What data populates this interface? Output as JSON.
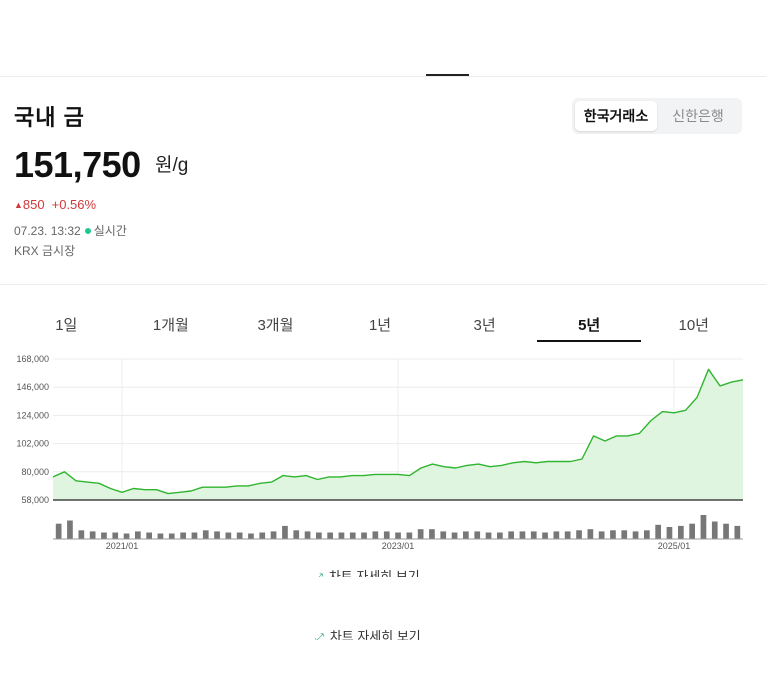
{
  "header": {
    "title": "국내 금",
    "sources": [
      {
        "label": "한국거래소",
        "active": true
      },
      {
        "label": "신한은행",
        "active": false
      }
    ]
  },
  "quote": {
    "price": "151,750",
    "unit": "원/g",
    "change_amount": "850",
    "change_percent": "+0.56%",
    "timestamp": "07.23. 13:32",
    "live_label": "실시간",
    "market": "KRX 금시장"
  },
  "periods": [
    {
      "label": "1일",
      "active": false
    },
    {
      "label": "1개월",
      "active": false
    },
    {
      "label": "3개월",
      "active": false
    },
    {
      "label": "1년",
      "active": false
    },
    {
      "label": "3년",
      "active": false
    },
    {
      "label": "5년",
      "active": true
    },
    {
      "label": "10년",
      "active": false
    }
  ],
  "colors": {
    "line": "#2fb52f",
    "area": "#dff5df",
    "up": "#d0393b",
    "live": "#1fc98d",
    "link_icon": "#1fa673"
  },
  "chart_data": {
    "type": "area",
    "x_start": "2020/07",
    "x_end": "2025/07",
    "x_ticks": [
      "2021/01",
      "2023/01",
      "2025/01"
    ],
    "y_ticks": [
      58000,
      80000,
      102000,
      124000,
      146000,
      168000
    ],
    "y_tick_labels": [
      "58,000",
      "80,000",
      "102,000",
      "124,000",
      "146,000",
      "168,000"
    ],
    "ylim": [
      58000,
      168000
    ],
    "grid": true,
    "series": [
      {
        "values": [
          76000,
          80000,
          73000,
          72000,
          71000,
          67000,
          64000,
          67000,
          66000,
          66000,
          63000,
          64000,
          65000,
          68000,
          68000,
          68000,
          69000,
          69000,
          71000,
          72000,
          77000,
          76000,
          77000,
          74000,
          76000,
          76000,
          77000,
          77000,
          78000,
          78000,
          78000,
          77000,
          83000,
          86000,
          84000,
          83000,
          85000,
          86000,
          84000,
          85000,
          87000,
          88000,
          87000,
          88000,
          88000,
          88000,
          90000,
          108000,
          104000,
          108000,
          108000,
          110000,
          120000,
          127000,
          126000,
          128000,
          138000,
          160000,
          147000,
          150000,
          151750
        ]
      }
    ],
    "volume": [
      14,
      17,
      8,
      7,
      6,
      6,
      5,
      7,
      6,
      5,
      5,
      6,
      6,
      8,
      7,
      6,
      6,
      5,
      6,
      7,
      12,
      8,
      7,
      6,
      6,
      6,
      6,
      6,
      7,
      7,
      6,
      6,
      9,
      9,
      7,
      6,
      7,
      7,
      6,
      6,
      7,
      7,
      7,
      6,
      7,
      7,
      8,
      9,
      7,
      8,
      8,
      7,
      8,
      13,
      11,
      12,
      14,
      22,
      16,
      14,
      12
    ]
  },
  "links": {
    "chart_detail": "차트 자세히 보기",
    "chart_detail_2": "차트 자세히 보기"
  }
}
